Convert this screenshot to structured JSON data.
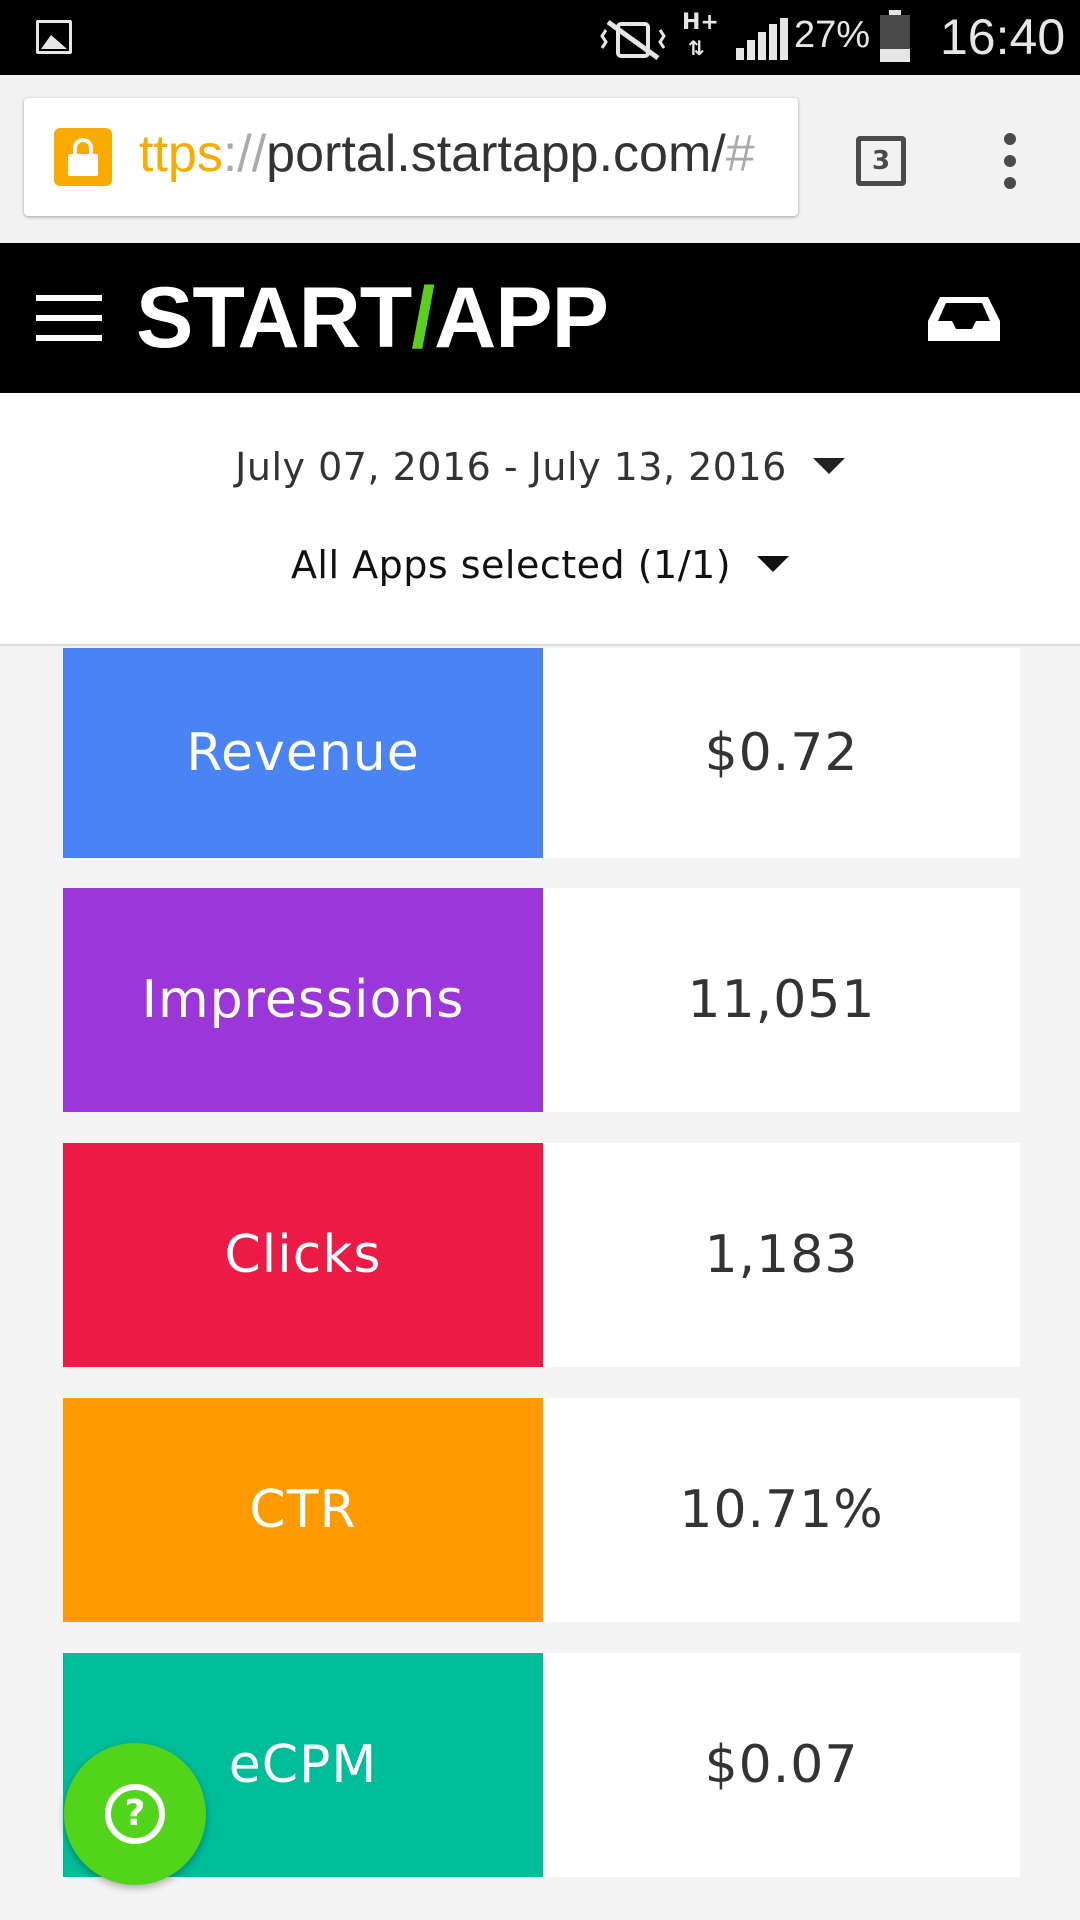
{
  "status_bar": {
    "icons": [
      "gallery-icon",
      "mute-vibrate-icon",
      "hplus-network-icon",
      "signal-icon",
      "battery-icon"
    ],
    "network_label": "H+",
    "battery_percent": "27%",
    "battery_level": 0.27,
    "time": "16:40"
  },
  "browser": {
    "url_scheme": "ttps",
    "url_sep": "://",
    "url_host": "portal.startapp.com/",
    "url_tail": "#",
    "lock_color": "#f9ab00",
    "tab_count": "3"
  },
  "app_header": {
    "logo_left": "START",
    "logo_slash": "/",
    "logo_right": "APP",
    "accent_color": "#5ccf1e"
  },
  "filters": {
    "date_range": "July 07, 2016 - July 13, 2016",
    "apps_selected": "All Apps selected (1/1)"
  },
  "stats": [
    {
      "label": "Revenue",
      "value": "$0.72",
      "color": "#4a83f3"
    },
    {
      "label": "Impressions",
      "value": "11,051",
      "color": "#9b36d9"
    },
    {
      "label": "Clicks",
      "value": "1,183",
      "color": "#ec1b45"
    },
    {
      "label": "CTR",
      "value": "10.71%",
      "color": "#ff9a00"
    },
    {
      "label": "eCPM",
      "value": "$0.07",
      "color": "#00bd99"
    }
  ],
  "help": {
    "glyph": "?",
    "color": "#52d41a"
  }
}
